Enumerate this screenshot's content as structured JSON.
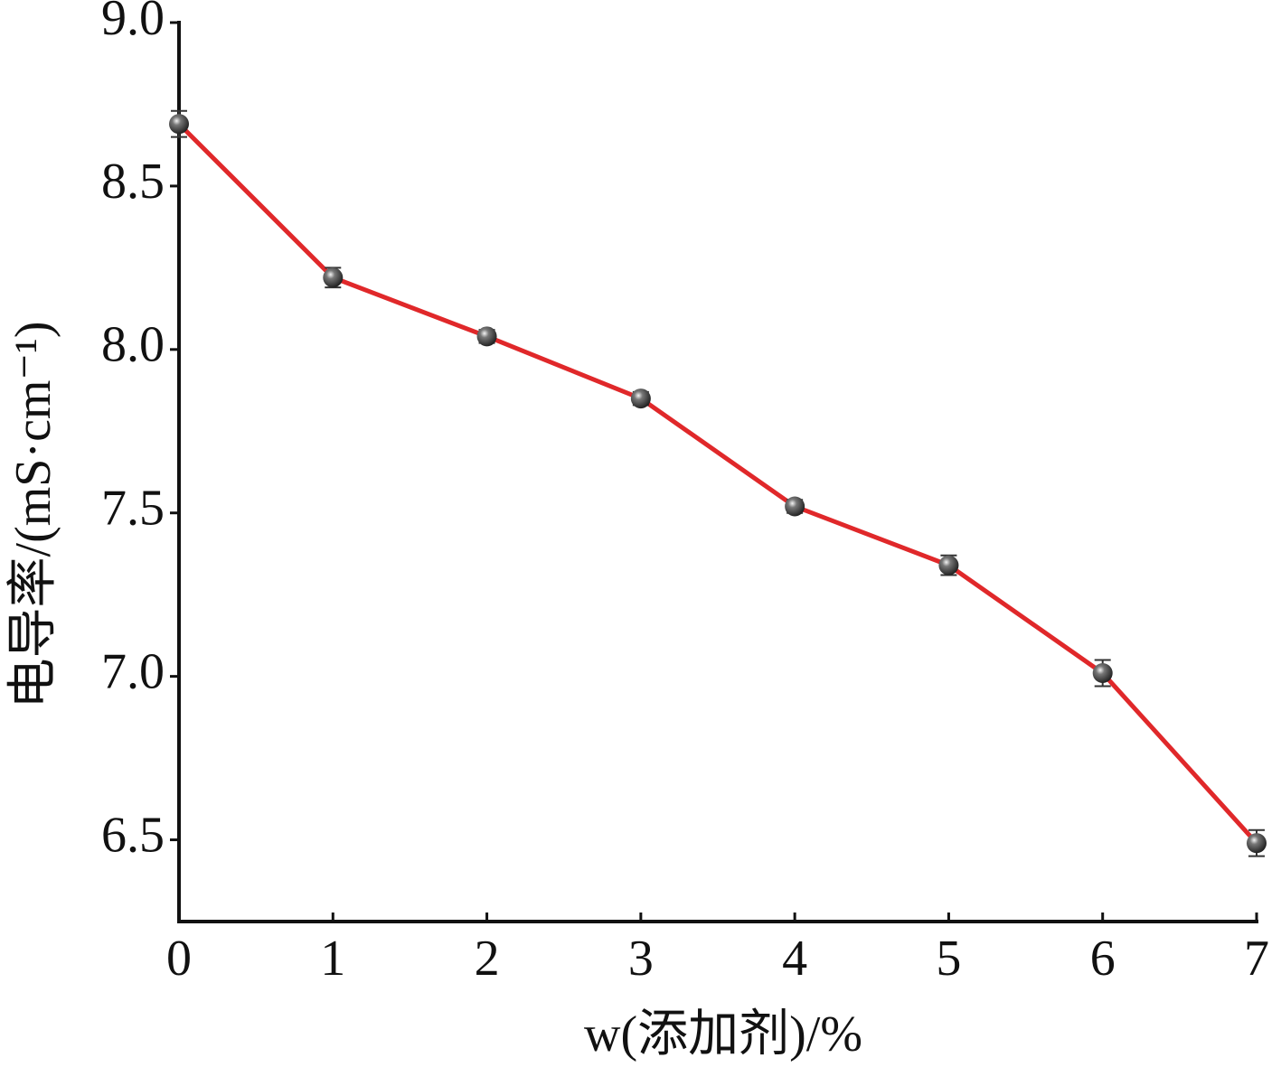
{
  "chart_data": {
    "type": "line",
    "x_label": "w(添加剂)/%",
    "y_label": "电导率/(mS·cm⁻¹)",
    "x": [
      0,
      1,
      2,
      3,
      4,
      5,
      6,
      7
    ],
    "series": [
      {
        "color": "#e0282a",
        "values": [
          8.69,
          8.22,
          8.04,
          7.85,
          7.52,
          7.34,
          7.01,
          6.49
        ],
        "errors": [
          0.04,
          0.03,
          0.02,
          0.02,
          0.02,
          0.03,
          0.04,
          0.04
        ]
      }
    ],
    "xlim": [
      0,
      7
    ],
    "xticks": [
      0,
      1,
      2,
      3,
      4,
      5,
      6,
      7
    ],
    "ylim": [
      6.25,
      9.0
    ],
    "yticks": [
      6.5,
      {
        "value": 7,
        "label": "7.0"
      },
      7.5,
      {
        "value": 8,
        "label": "8.0"
      },
      8.5,
      {
        "value": 9,
        "label": "9.0"
      }
    ],
    "grid": false
  }
}
